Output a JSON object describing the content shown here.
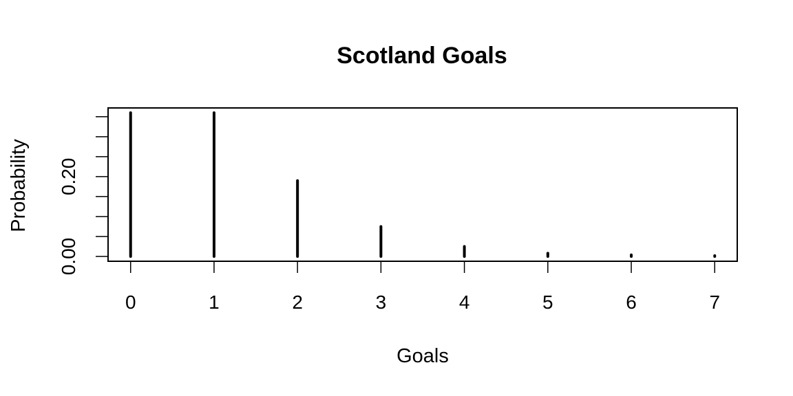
{
  "chart_data": {
    "type": "bar",
    "title": "Scotland Goals",
    "xlabel": "Goals",
    "ylabel": "Probability",
    "categories": [
      "0",
      "1",
      "2",
      "3",
      "4",
      "5",
      "6",
      "7"
    ],
    "x": [
      0,
      1,
      2,
      3,
      4,
      5,
      6,
      7
    ],
    "values": [
      0.36,
      0.36,
      0.19,
      0.075,
      0.025,
      0.008,
      0.004,
      0.002
    ],
    "xlim": [
      -0.27,
      7.27
    ],
    "ylim": [
      -0.012,
      0.372
    ],
    "x_ticks": [
      "0",
      "1",
      "2",
      "3",
      "4",
      "5",
      "6",
      "7"
    ],
    "y_ticks": [
      0.0,
      0.05,
      0.1,
      0.15,
      0.2,
      0.25,
      0.3,
      0.35
    ],
    "y_tick_labels": [
      {
        "value": 0.0,
        "label": "0.00"
      },
      {
        "value": 0.2,
        "label": "0.20"
      }
    ],
    "grid": false,
    "legend": "none",
    "bar_color": "#000000"
  }
}
